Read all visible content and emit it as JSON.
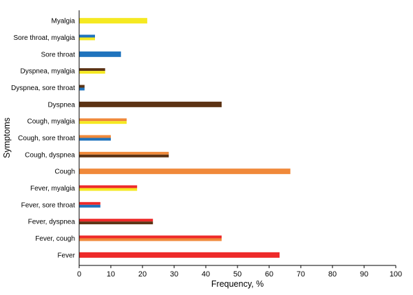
{
  "chart_data": {
    "type": "bar",
    "orientation": "horizontal",
    "xlabel": "Frequency, %",
    "ylabel": "Symptoms",
    "xlim": [
      0,
      100
    ],
    "xticks": [
      0,
      10,
      20,
      30,
      40,
      50,
      60,
      70,
      80,
      90,
      100
    ],
    "grid": false,
    "colors": {
      "fever": "#ee2a2a",
      "cough": "#f0893a",
      "dyspnea": "#5c3314",
      "sore_throat": "#1f73bd",
      "myalgia": "#f5e921"
    },
    "categories": [
      {
        "label": "Myalgia",
        "value": 21.5,
        "colors": [
          "myalgia"
        ]
      },
      {
        "label": "Sore throat, myalgia",
        "value": 5,
        "colors": [
          "sore_throat",
          "myalgia"
        ]
      },
      {
        "label": "Sore throat",
        "value": 13.2,
        "colors": [
          "sore_throat"
        ]
      },
      {
        "label": "Dyspnea, myalgia",
        "value": 8.2,
        "colors": [
          "dyspnea",
          "myalgia"
        ]
      },
      {
        "label": "Dyspnea, sore throat",
        "value": 1.7,
        "colors": [
          "dyspnea",
          "sore_throat"
        ]
      },
      {
        "label": "Dyspnea",
        "value": 45,
        "colors": [
          "dyspnea"
        ]
      },
      {
        "label": "Cough, myalgia",
        "value": 15,
        "colors": [
          "cough",
          "myalgia"
        ]
      },
      {
        "label": "Cough, sore throat",
        "value": 10,
        "colors": [
          "cough",
          "sore_throat"
        ]
      },
      {
        "label": "Cough, dyspnea",
        "value": 28.3,
        "colors": [
          "cough",
          "dyspnea"
        ]
      },
      {
        "label": "Cough",
        "value": 66.7,
        "colors": [
          "cough"
        ]
      },
      {
        "label": "Fever, myalgia",
        "value": 18.3,
        "colors": [
          "fever",
          "myalgia"
        ]
      },
      {
        "label": "Fever, sore throat",
        "value": 6.7,
        "colors": [
          "fever",
          "sore_throat"
        ]
      },
      {
        "label": "Fever, dyspnea",
        "value": 23.3,
        "colors": [
          "fever",
          "dyspnea"
        ]
      },
      {
        "label": "Fever, cough",
        "value": 45,
        "colors": [
          "fever",
          "cough"
        ]
      },
      {
        "label": "Fever",
        "value": 63.3,
        "colors": [
          "fever"
        ]
      }
    ]
  }
}
